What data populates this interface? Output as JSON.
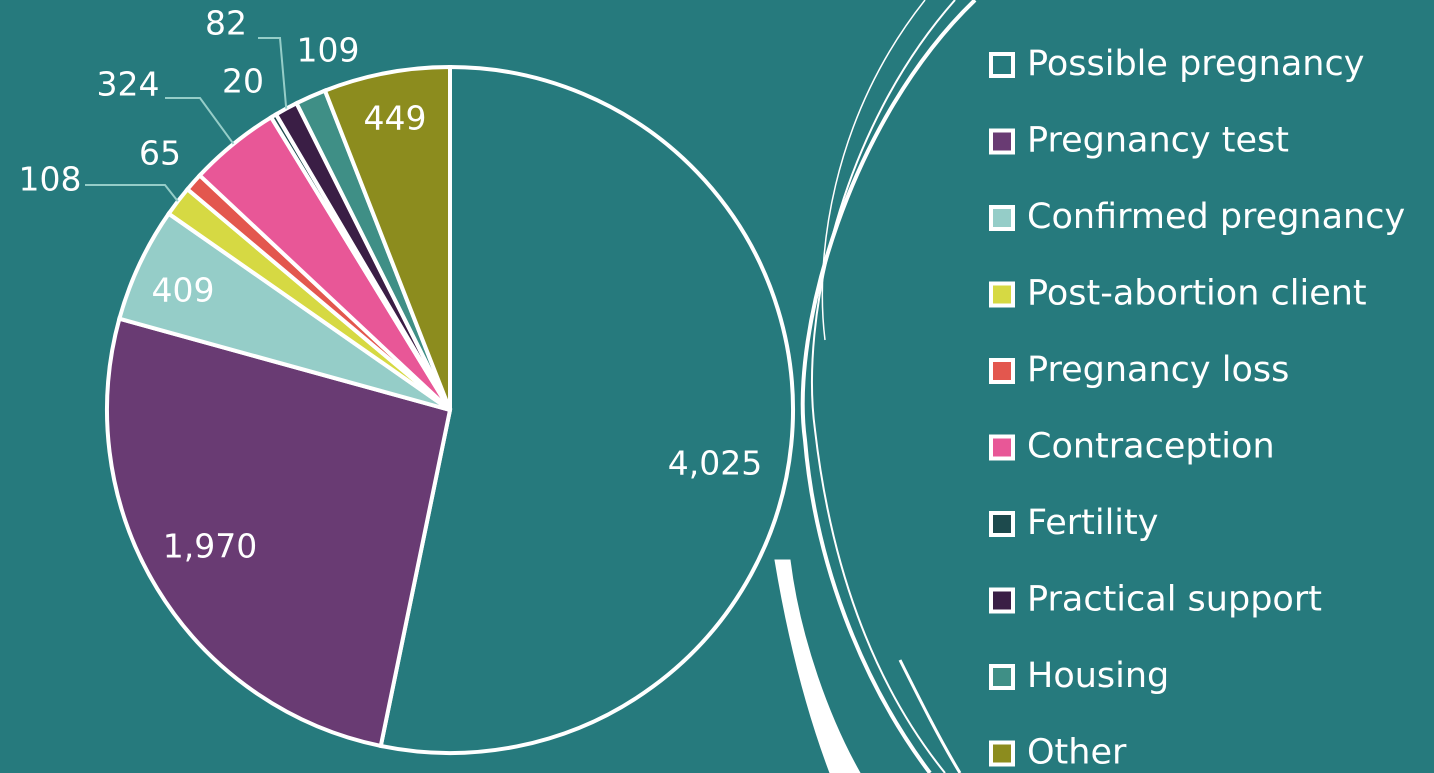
{
  "chart_data": {
    "type": "pie",
    "categories": [
      "Possible pregnancy",
      "Pregnancy test",
      "Confirmed pregnancy",
      "Post-abortion client",
      "Pregnancy loss",
      "Contraception",
      "Fertility",
      "Practical support",
      "Housing",
      "Other"
    ],
    "values": [
      4025,
      1970,
      409,
      108,
      65,
      324,
      20,
      82,
      109,
      449
    ],
    "value_labels": [
      "4,025",
      "1,970",
      "409",
      "108",
      "65",
      "324",
      "20",
      "82",
      "109",
      "449"
    ],
    "colors": [
      "#267a7d",
      "#693b73",
      "#95cdc8",
      "#d6d943",
      "#e3574e",
      "#e85797",
      "#1d4a4d",
      "#3a1e45",
      "#3f8f86",
      "#8c8c1e"
    ]
  }
}
